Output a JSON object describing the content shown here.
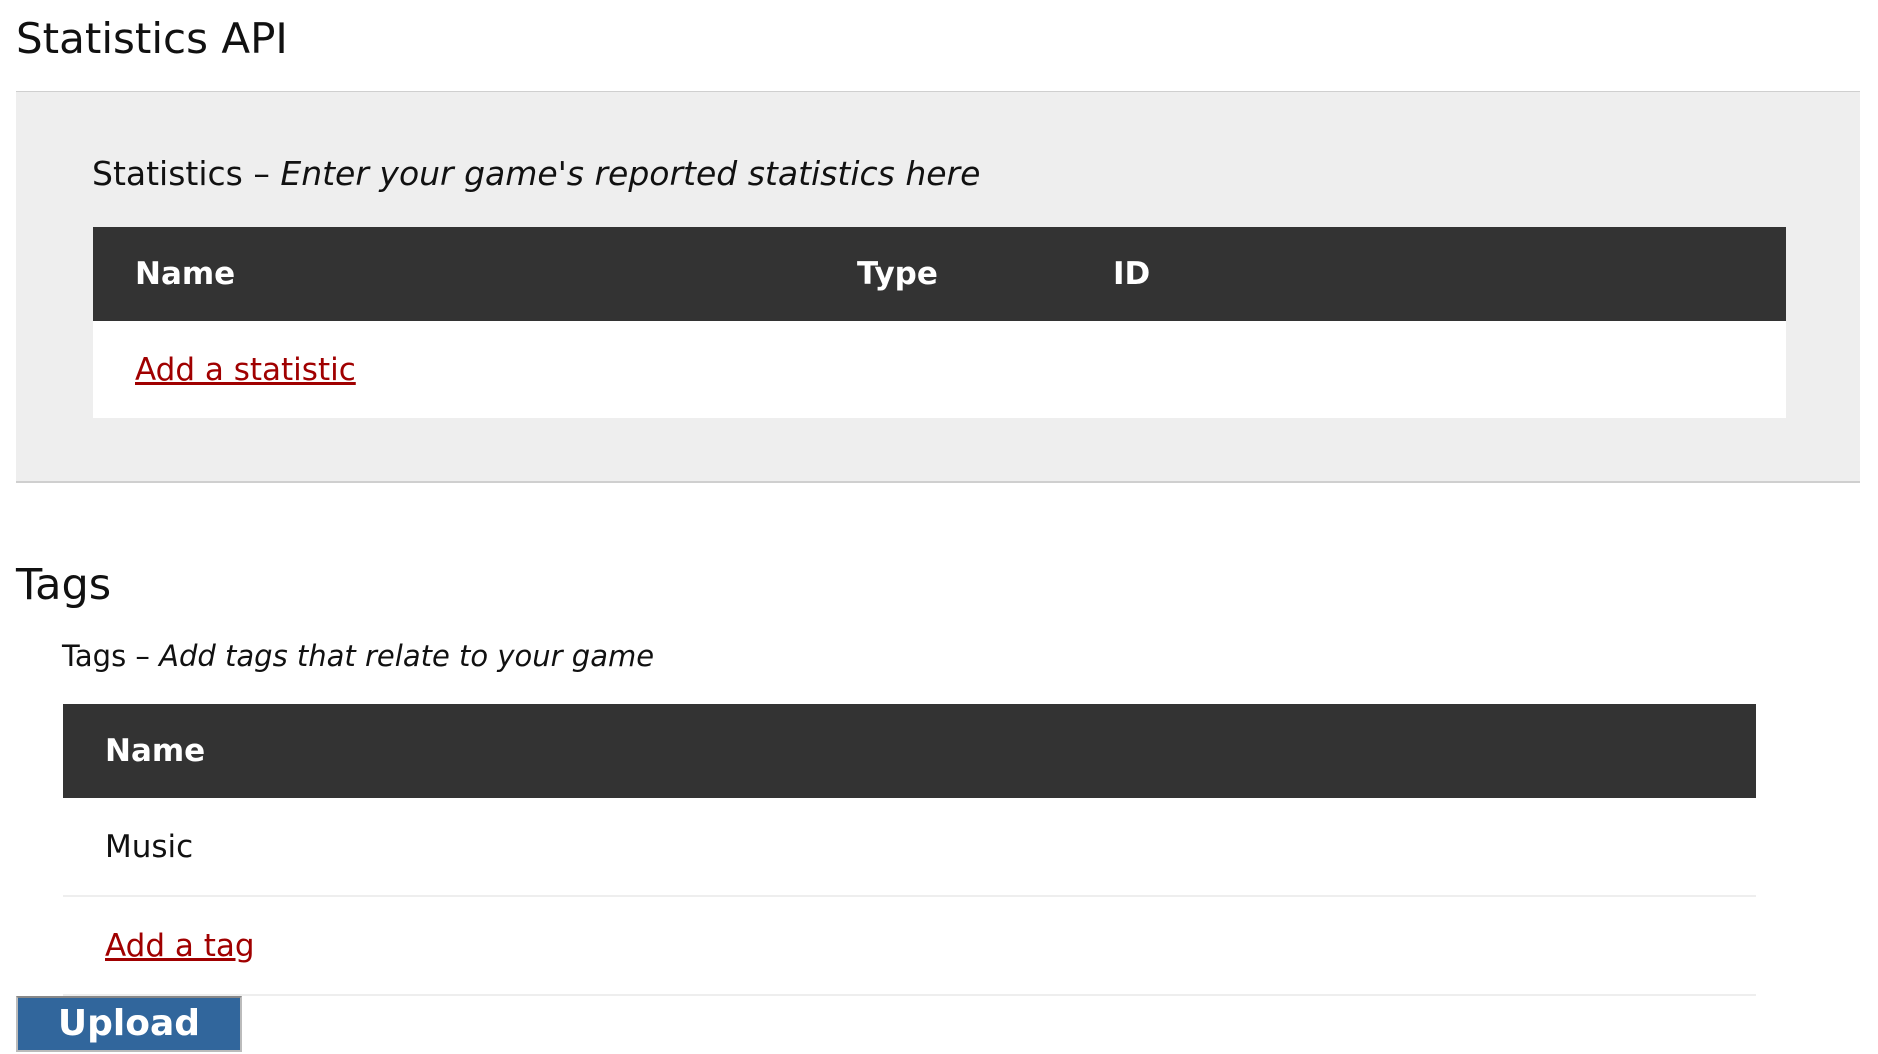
{
  "page_title": "Statistics API",
  "statistics": {
    "label": "Statistics",
    "separator": " – ",
    "description": "Enter your game's reported statistics here",
    "columns": [
      "Name",
      "Type",
      "ID"
    ],
    "add_link": "Add a statistic"
  },
  "tags": {
    "heading": "Tags",
    "label": "Tags",
    "separator": " – ",
    "description": "Add tags that relate to your game",
    "columns": [
      "Name"
    ],
    "rows": [
      "Music"
    ],
    "add_link": "Add a tag"
  },
  "upload_button": "Upload",
  "colors": {
    "header_bg": "#333333",
    "link": "#a00000",
    "button": "#31669c",
    "panel": "#eeeeee"
  }
}
